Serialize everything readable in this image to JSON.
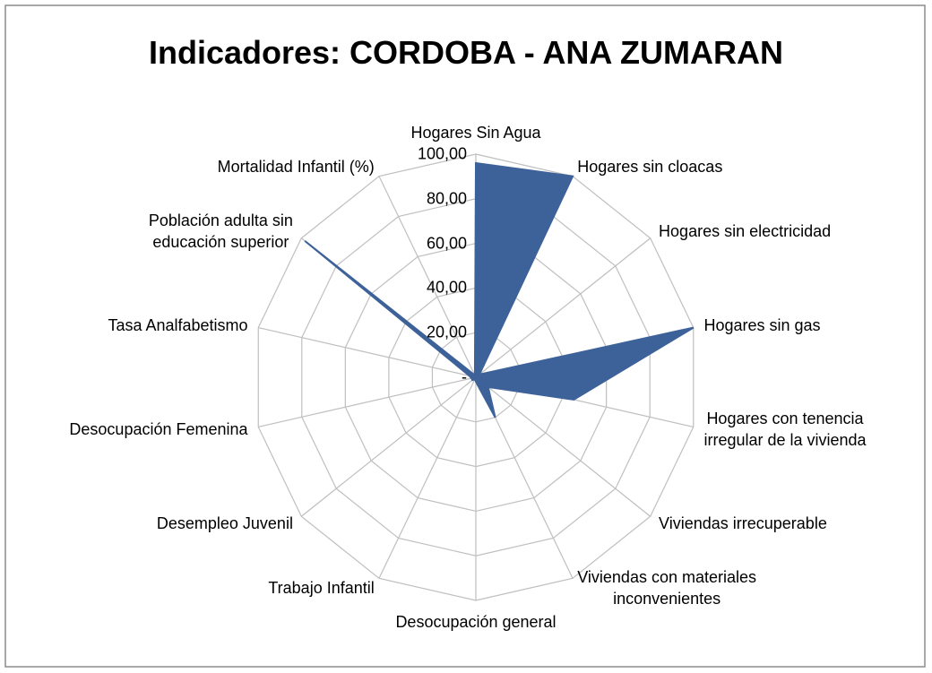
{
  "chart_data": {
    "type": "radar",
    "title": "Indicadores: CORDOBA - ANA ZUMARAN",
    "categories": [
      "Hogares Sin Agua",
      "Hogares sin cloacas",
      "Hogares sin electricidad",
      "Hogares sin gas",
      "Hogares con tenencia\nirregular de la vivienda",
      "Viviendas irrecuperable",
      "Viviendas con materiales\ninconvenientes",
      "Desocupación general",
      "Trabajo Infantil",
      "Desempleo Juvenil",
      "Desocupación Femenina",
      "Tasa Analfabetismo",
      "Población adulta  sin\neducación superior",
      "Mortalidad Infantil (%)"
    ],
    "values": [
      96,
      100,
      2,
      100,
      45,
      7,
      20,
      2,
      1,
      2,
      2,
      3,
      98,
      1
    ],
    "color": "#3d6299",
    "ylim": [
      0,
      100
    ],
    "yticks": [
      {
        "value": 0,
        "label": "-"
      },
      {
        "value": 20,
        "label": "20,00"
      },
      {
        "value": 40,
        "label": "40,00"
      },
      {
        "value": 60,
        "label": "60,00"
      },
      {
        "value": 80,
        "label": "80,00"
      },
      {
        "value": 100,
        "label": "100,00"
      }
    ],
    "grid": true
  }
}
